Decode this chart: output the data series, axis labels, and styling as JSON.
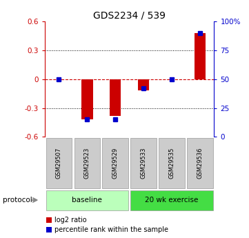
{
  "title": "GDS2234 / 539",
  "samples": [
    "GSM29507",
    "GSM29523",
    "GSM29529",
    "GSM29533",
    "GSM29535",
    "GSM29536"
  ],
  "log2_ratio": [
    0.0,
    -0.42,
    -0.38,
    -0.12,
    0.0,
    0.48
  ],
  "percentile_rank": [
    50,
    15,
    15,
    42,
    50,
    90
  ],
  "groups": [
    {
      "label": "baseline",
      "indices": [
        0,
        1,
        2
      ],
      "color": "#bbffbb"
    },
    {
      "label": "20 wk exercise",
      "indices": [
        3,
        4,
        5
      ],
      "color": "#44dd44"
    }
  ],
  "ylim": [
    -0.6,
    0.6
  ],
  "yticks_left": [
    -0.6,
    -0.3,
    0.0,
    0.3,
    0.6
  ],
  "yticks_right": [
    0,
    25,
    50,
    75,
    100
  ],
  "bar_color_red": "#cc0000",
  "bar_color_blue": "#0000cc",
  "zero_line_color": "#cc0000",
  "grid_color": "#000000",
  "protocol_label": "protocol",
  "legend_items": [
    "log2 ratio",
    "percentile rank within the sample"
  ],
  "sample_box_color": "#cccccc",
  "sample_box_edge": "#999999"
}
